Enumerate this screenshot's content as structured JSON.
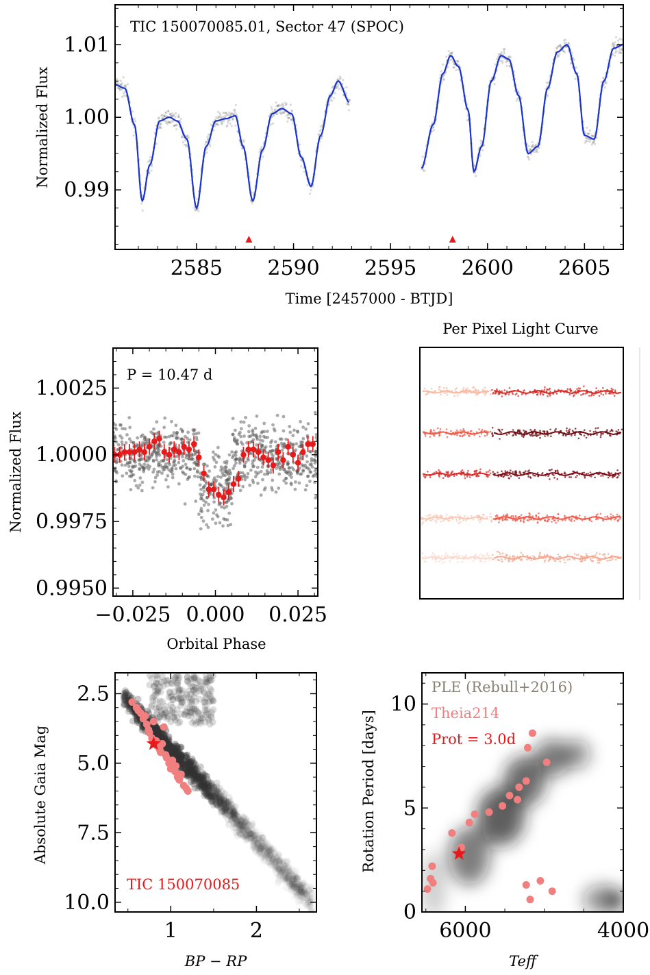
{
  "charts": [
    {
      "id": "lightcurve",
      "type": "scatter",
      "title": "TIC 150070085.01, Sector 47 (SPOC)",
      "xlabel": "Time [2457000 - BTJD]",
      "ylabel": "Normalized Flux",
      "xlim": [
        2580.8,
        2607
      ],
      "ylim": [
        0.9818,
        1.0155
      ],
      "xticks": [
        "2585",
        "2590",
        "2595",
        "2600",
        "2605"
      ],
      "yticks": [
        "0.99",
        "1.00",
        "1.01"
      ],
      "gap": [
        2592.9,
        2596.6
      ],
      "model_curve": {
        "x": [
          2580.8,
          2581.3,
          2581.8,
          2582.2,
          2582.6,
          2583.1,
          2583.6,
          2584.0,
          2584.5,
          2585.0,
          2585.5,
          2586.0,
          2586.5,
          2587.0,
          2587.4,
          2587.9,
          2588.4,
          2588.9,
          2589.4,
          2589.9,
          2590.4,
          2590.9,
          2591.4,
          2591.9,
          2592.3,
          2592.9,
          2596.6,
          2597.2,
          2597.7,
          2598.1,
          2598.5,
          2599.0,
          2599.3,
          2599.7,
          2600.2,
          2600.7,
          2601.1,
          2601.6,
          2602.1,
          2602.6,
          2603.1,
          2603.6,
          2604.1,
          2604.6,
          2605.0,
          2605.5,
          2606.0,
          2606.5,
          2607.0
        ],
        "y": [
          1.0045,
          1.004,
          0.999,
          0.9885,
          0.9935,
          0.9995,
          1.0,
          0.9995,
          0.997,
          0.9875,
          0.996,
          0.9995,
          0.9998,
          1.0002,
          0.996,
          0.9885,
          0.9955,
          1.0005,
          1.0012,
          1.0005,
          0.9945,
          0.9905,
          0.9975,
          1.003,
          1.005,
          1.002,
          0.993,
          0.999,
          1.006,
          1.0085,
          1.007,
          1.001,
          0.9925,
          0.996,
          1.005,
          1.0085,
          1.008,
          1.003,
          0.995,
          0.996,
          1.004,
          1.009,
          1.01,
          1.006,
          0.9975,
          0.997,
          1.005,
          1.0095,
          1.01
        ]
      },
      "markers": [
        2587.7,
        2598.2
      ],
      "colors": {
        "model": "#1a33cc",
        "data": "#2a2a2a",
        "marker": "#e8191a"
      }
    },
    {
      "id": "phase",
      "type": "scatter",
      "annotation": "P = 10.47 d",
      "xlabel": "Orbital Phase",
      "ylabel": "Normalized Flux",
      "xlim": [
        -0.031,
        0.031
      ],
      "ylim": [
        0.9947,
        1.004
      ],
      "xticks": [
        "−0.025",
        "0.000",
        "0.025"
      ],
      "yticks": [
        "0.9950",
        "0.9975",
        "1.0000",
        "1.0025"
      ],
      "binned": {
        "x": [
          -0.0305,
          -0.029,
          -0.0275,
          -0.026,
          -0.0245,
          -0.023,
          -0.0215,
          -0.02,
          -0.0185,
          -0.017,
          -0.0155,
          -0.014,
          -0.0125,
          -0.011,
          -0.0095,
          -0.008,
          -0.0065,
          -0.005,
          -0.0035,
          -0.002,
          -0.0005,
          0.001,
          0.0025,
          0.004,
          0.0055,
          0.007,
          0.0085,
          0.01,
          0.0115,
          0.013,
          0.0145,
          0.016,
          0.0175,
          0.019,
          0.0205,
          0.022,
          0.0235,
          0.025,
          0.0265,
          0.028,
          0.0295
        ],
        "y": [
          1.0,
          1.0,
          1.0001,
          1.0001,
          1.0001,
          1.0002,
          1.0001,
          1.0003,
          1.0005,
          1.0006,
          1.0001,
          1.0,
          1.0002,
          1.0001,
          1.0003,
          1.0002,
          1.0004,
          0.9999,
          0.9993,
          0.9987,
          0.9987,
          0.9985,
          0.9984,
          0.9986,
          0.9989,
          0.9991,
          1.0,
          1.0002,
          1.0002,
          1.0001,
          0.9999,
          0.9998,
          0.9996,
          1.0001,
          0.9998,
          1.0003,
          1.0,
          0.9997,
          1.0001,
          1.0004,
          1.0004
        ]
      },
      "colors": {
        "binned": "#e8191a",
        "data": "#555555"
      }
    },
    {
      "id": "pixels",
      "type": "other",
      "title": "Per Pixel Light Curve",
      "rows": 5,
      "colors_left": [
        "#f7b8a0",
        "#ec5a48",
        "#d92a28",
        "#f9c6b0",
        "#fbd8cc"
      ],
      "colors_right": [
        "#d82a24",
        "#6b0a10",
        "#7e0c16",
        "#f0584a",
        "#f6a48c"
      ]
    },
    {
      "id": "cmd",
      "type": "scatter",
      "annotation": "TIC 150070085",
      "xlabel": "BP − RP",
      "ylabel": "Absolute Gaia Mag",
      "xlim": [
        0.35,
        2.7
      ],
      "ylim": [
        10.35,
        1.75
      ],
      "xticks": [
        "1",
        "2"
      ],
      "yticks": [
        "2.5",
        "5.0",
        "7.5",
        "10.0"
      ],
      "members": {
        "x": [
          0.55,
          0.6,
          0.65,
          0.7,
          0.72,
          0.75,
          0.78,
          0.8,
          0.85,
          0.88,
          0.9,
          0.92,
          0.95,
          0.98,
          1.0,
          1.02,
          1.05,
          1.08,
          1.1,
          1.12,
          1.15,
          1.18,
          1.2,
          0.62,
          0.68,
          0.74,
          0.83,
          0.87,
          0.94,
          1.06
        ],
        "y": [
          2.8,
          3.0,
          3.2,
          3.3,
          3.6,
          3.9,
          4.1,
          3.5,
          4.4,
          4.6,
          4.3,
          3.7,
          4.8,
          5.0,
          5.2,
          4.9,
          5.3,
          5.5,
          5.6,
          5.4,
          5.8,
          5.9,
          6.0,
          3.1,
          3.4,
          3.8,
          4.2,
          4.5,
          4.7,
          5.1
        ]
      },
      "target": {
        "x": 0.8,
        "y": 4.3
      },
      "colors": {
        "members": "#f08080",
        "target": "#e8191a",
        "label": "#e8191a"
      }
    },
    {
      "id": "rotation",
      "type": "scatter",
      "legend": [
        "PLE (Rebull+2016)",
        "Theia214",
        "Prot = 3.0d"
      ],
      "legend_location": "top-left",
      "xlabel": "Teff",
      "ylabel": "Rotation Period [days]",
      "xlim": [
        6550,
        4000
      ],
      "ylim": [
        0,
        11.5
      ],
      "xticks": [
        "6000",
        "4000"
      ],
      "yticks": [
        "0",
        "5",
        "10"
      ],
      "members": {
        "x": [
          6480,
          6440,
          6420,
          6410,
          6170,
          6050,
          5880,
          5950,
          5700,
          5530,
          5440,
          5340,
          5320,
          5230,
          5210,
          5180,
          5150,
          4970,
          4900,
          5050,
          5230
        ],
        "y": [
          1.1,
          1.6,
          2.2,
          1.4,
          3.8,
          3.1,
          4.7,
          4.3,
          4.8,
          5.1,
          5.6,
          5.4,
          6.0,
          6.3,
          7.9,
          0.6,
          8.6,
          7.2,
          1.0,
          1.5,
          1.3
        ]
      },
      "target": {
        "x": 6080,
        "y": 2.8
      },
      "colors": {
        "legend1": "#8a8275",
        "members": "#f08080",
        "target": "#e8191a"
      }
    }
  ]
}
